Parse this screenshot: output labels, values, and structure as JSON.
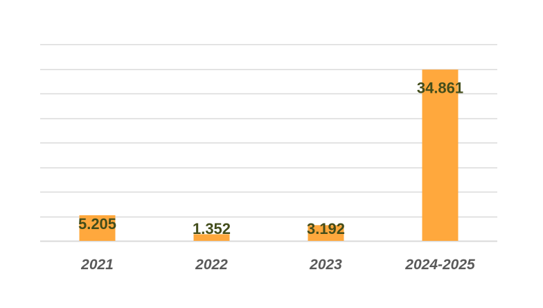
{
  "chart_data": {
    "type": "bar",
    "categories": [
      "2021",
      "2022",
      "2023",
      "2024-2025"
    ],
    "values": [
      5.205,
      1.352,
      3.192,
      34.861
    ],
    "value_labels": [
      "5.205",
      "1.352",
      "3.192",
      "34.861"
    ],
    "title": "",
    "xlabel": "",
    "ylabel": "",
    "ylim": [
      0,
      40
    ],
    "grid": true,
    "legend": "none",
    "colors": {
      "bar": "#ffa83d",
      "data_label": "#434d1b",
      "tick_label": "#595959",
      "grid": "#d9d9d9"
    }
  }
}
